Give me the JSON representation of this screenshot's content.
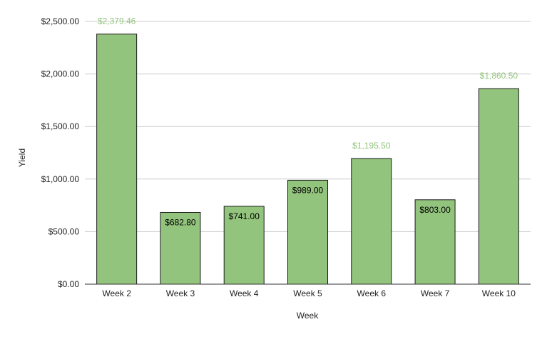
{
  "chart_data": {
    "type": "bar",
    "title": "",
    "xlabel": "Week",
    "ylabel": "Yield",
    "categories": [
      "Week 2",
      "Week 3",
      "Week 4",
      "Week 5",
      "Week 6",
      "Week 7",
      "Week 10"
    ],
    "values": [
      2379.46,
      682.8,
      741.0,
      989.0,
      1195.5,
      803.0,
      1860.5
    ],
    "value_labels": [
      "$2,379.46",
      "$682.80",
      "$741.00",
      "$989.00",
      "$1,195.50",
      "$803.00",
      "$1,860.50"
    ],
    "label_outside": [
      true,
      false,
      false,
      false,
      true,
      false,
      true
    ],
    "ylim": [
      0,
      2500
    ],
    "yticks": [
      0,
      500,
      1000,
      1500,
      2000,
      2500
    ],
    "ytick_labels": [
      "$0.00",
      "$500.00",
      "$1,000.00",
      "$1,500.00",
      "$2,000.00",
      "$2,500.00"
    ],
    "grid": true,
    "legend": "none",
    "colors": {
      "bar_fill": "#93c47d",
      "bar_stroke": "#1a1a1a",
      "gridline": "#cccccc",
      "axis_line": "#333333",
      "label_inside": "#000000",
      "label_outside": "#93c47d"
    }
  }
}
